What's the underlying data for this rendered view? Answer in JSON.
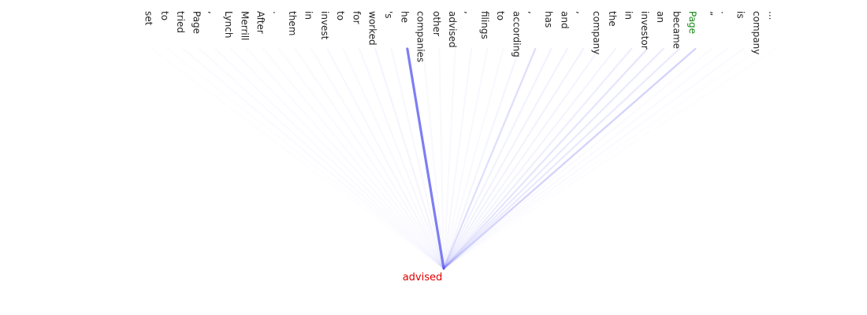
{
  "tokens": [
    "set",
    "to",
    "tried",
    "Page",
    ",",
    "Lynch",
    "Merrill",
    "After",
    ".",
    "them",
    "in",
    "invest",
    "to",
    "for",
    "worked",
    "'s",
    "he",
    "companies",
    "other",
    "advised",
    ",",
    "filings",
    "to",
    "according",
    ",",
    "has",
    "and",
    ",",
    "company",
    "the",
    "in",
    "investor",
    "an",
    "became",
    "Page",
    "”",
    ".",
    "is",
    "company",
    "..."
  ],
  "weights": [
    0.01,
    0.01,
    0.02,
    0.02,
    0.02,
    0.02,
    0.02,
    0.02,
    0.02,
    0.03,
    0.03,
    0.04,
    0.03,
    0.04,
    0.05,
    0.04,
    0.6,
    0.03,
    0.03,
    0.03,
    0.04,
    0.03,
    0.03,
    0.05,
    0.15,
    0.06,
    0.06,
    0.06,
    0.05,
    0.05,
    0.08,
    0.12,
    0.1,
    0.1,
    0.2,
    0.02,
    0.02,
    0.02,
    0.01,
    0.01
  ],
  "query": "advised",
  "line_color": "#5a5af0",
  "query_color": "#e00000",
  "highlight_index": 34,
  "highlight_color": "#1a8a1a"
}
